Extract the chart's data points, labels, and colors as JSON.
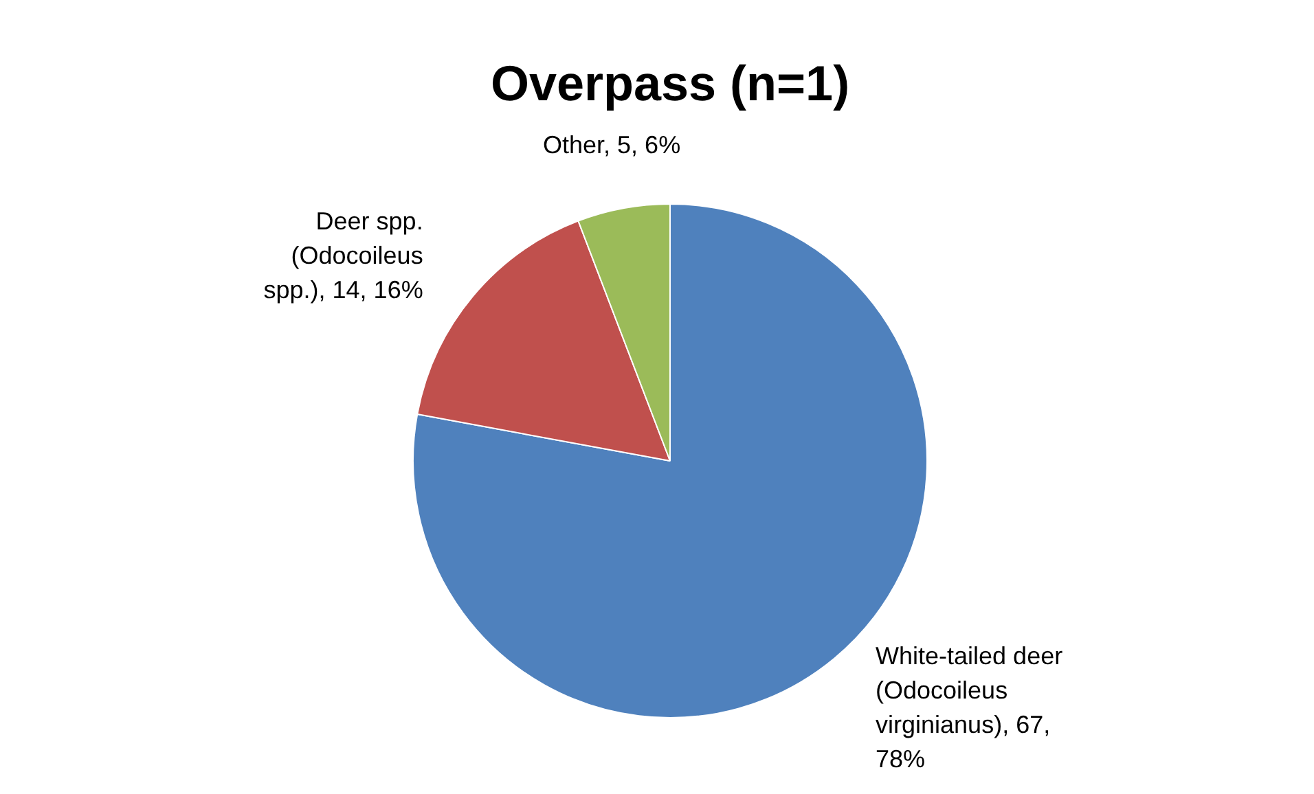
{
  "chart_data": {
    "type": "pie",
    "title": "Overpass (n=1)",
    "categories": [
      "White-tailed deer (Odocoileus virginianus)",
      "Deer spp. (Odocoileus spp.)",
      "Other"
    ],
    "values": [
      67,
      14,
      5
    ],
    "colors": [
      "#4f81bd",
      "#c0504d",
      "#9bbb59"
    ],
    "value_labels": [
      "67, 78%",
      "14, 16%",
      "5, 6%"
    ]
  }
}
